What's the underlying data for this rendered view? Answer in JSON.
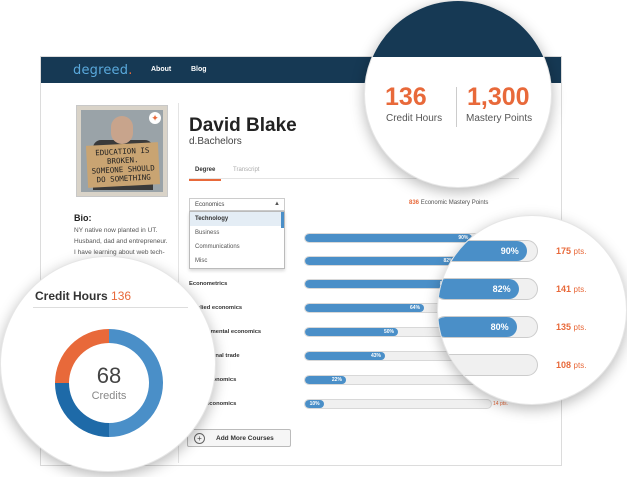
{
  "nav": {
    "logo": "degreed",
    "logo_dot": ".",
    "links": [
      "About",
      "Blog"
    ]
  },
  "profile": {
    "name": "David Blake",
    "school": "d.Bachelors",
    "photo_sign": [
      "EDUCATION IS",
      "BROKEN.",
      "SOMEONE SHOULD",
      "DO SOMETHING"
    ],
    "bio_title": "Bio:",
    "bio_lines": [
      "NY native now planted in UT.",
      "Husband, dad and entrepreneur.",
      "I have learning about web tech-"
    ]
  },
  "tabs": [
    "Degree",
    "Transcript"
  ],
  "select": {
    "value": "Economics",
    "options": [
      "Technology",
      "Business",
      "Communications",
      "Misc"
    ],
    "selected_index": 0
  },
  "mastery_summary": {
    "points": "836",
    "label": "Economic Mastery Points"
  },
  "subjects": [
    {
      "name": "",
      "percent": 90,
      "label": "90%"
    },
    {
      "name": "",
      "percent": 82,
      "label": "82%"
    },
    {
      "name": "Econometrics",
      "percent": 80,
      "label": "80%"
    },
    {
      "name": "Applied economics",
      "percent": 64,
      "label": "64%"
    },
    {
      "name": "Environmental economics",
      "percent": 50,
      "label": "50%"
    },
    {
      "name": "International trade",
      "percent": 43,
      "label": "43%"
    },
    {
      "name": "Macroeconomics",
      "percent": 22,
      "label": "22%"
    },
    {
      "name": "Macroeconomics",
      "percent": 10,
      "label": "10%"
    }
  ],
  "last_row_points": "14 pts.",
  "add_button": "Add More Courses",
  "stats": {
    "credit_hours": "136",
    "credit_hours_label": "Credit Hours",
    "mastery_points": "1,300",
    "mastery_points_label": "Mastery Points"
  },
  "zoom_rows": [
    {
      "percent": 90,
      "label": "90%",
      "points": "175",
      "unit": "pts."
    },
    {
      "percent": 82,
      "label": "82%",
      "points": "141",
      "unit": "pts."
    },
    {
      "percent": 80,
      "label": "80%",
      "points": "135",
      "unit": "pts."
    },
    {
      "percent": 0,
      "label": "",
      "points": "108",
      "unit": "pts."
    }
  ],
  "credit_chart": {
    "title": "Credit Hours",
    "total": "136",
    "center_value": "68",
    "center_label": "Credits",
    "segments": [
      {
        "fraction": 0.5,
        "color": "#4a8fc8"
      },
      {
        "fraction": 0.25,
        "color": "#1e6aa8"
      },
      {
        "fraction": 0.25,
        "color": "#e8693a"
      }
    ]
  },
  "colors": {
    "accent": "#e8693a",
    "nav": "#163954",
    "bar": "#4a8fc8"
  }
}
